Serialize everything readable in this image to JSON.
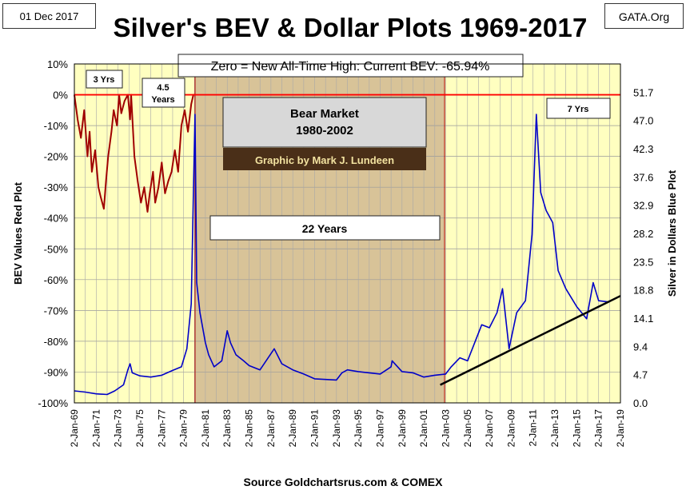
{
  "header": {
    "date": "01 Dec 2017",
    "title": "Silver's BEV & Dollar Plots 1969-2017",
    "brand": "GATA.Org"
  },
  "colors": {
    "plot_bg": "#ffffc0",
    "bear_shade": "#d8c398",
    "bev_line": "#a00000",
    "price_line": "#0000c8",
    "zero_line": "#ff0000",
    "trend_line": "#000000"
  },
  "chart_data": {
    "type": "line",
    "title": "Silver's BEV & Dollar Plots 1969-2017",
    "xlabel": "Source Goldchartsrus.com & COMEX",
    "ylabel_left": "BEV Values   Red Plot",
    "ylabel_right": "Silver in Dollars   Blue Plot",
    "xlim": [
      1969,
      2019
    ],
    "ylim_left": [
      -100,
      10
    ],
    "ylim_right": [
      0,
      56.4
    ],
    "x_ticks": [
      "2-Jan-69",
      "2-Jan-71",
      "2-Jan-73",
      "2-Jan-75",
      "2-Jan-77",
      "2-Jan-79",
      "2-Jan-81",
      "2-Jan-83",
      "2-Jan-85",
      "2-Jan-87",
      "2-Jan-89",
      "2-Jan-91",
      "2-Jan-93",
      "2-Jan-95",
      "2-Jan-97",
      "2-Jan-99",
      "2-Jan-01",
      "2-Jan-03",
      "2-Jan-05",
      "2-Jan-07",
      "2-Jan-09",
      "2-Jan-11",
      "2-Jan-13",
      "2-Jan-15",
      "2-Jan-17",
      "2-Jan-19"
    ],
    "y_ticks_left": [
      "10%",
      "0%",
      "-10%",
      "-20%",
      "-30%",
      "-40%",
      "-50%",
      "-60%",
      "-70%",
      "-80%",
      "-90%",
      "-100%"
    ],
    "y_ticks_right": [
      "51.7",
      "47.0",
      "42.3",
      "37.6",
      "32.9",
      "28.2",
      "23.5",
      "18.8",
      "14.1",
      "9.4",
      "4.7",
      "0.0"
    ],
    "grid": true,
    "series": [
      {
        "name": "BEV Values (Red Plot)",
        "x": [
          1969.0,
          1969.3,
          1969.6,
          1969.9,
          1970.2,
          1970.4,
          1970.6,
          1970.9,
          1971.2,
          1971.4,
          1971.7,
          1971.9,
          1972.1,
          1972.4,
          1972.6,
          1972.9,
          1973.1,
          1973.3,
          1973.6,
          1973.9,
          1974.1,
          1974.2,
          1974.5,
          1974.8,
          1975.1,
          1975.4,
          1975.7,
          1975.9,
          1976.2,
          1976.4,
          1976.7,
          1977.0,
          1977.3,
          1977.6,
          1977.9,
          1978.2,
          1978.5,
          1978.8,
          1979.1,
          1979.4,
          1979.7,
          1979.9,
          1980.05
        ],
        "y": [
          0,
          -8,
          -14,
          -5,
          -20,
          -12,
          -25,
          -18,
          -30,
          -33,
          -37,
          -28,
          -20,
          -12,
          -5,
          -10,
          0,
          -6,
          -2,
          0,
          -8,
          0,
          -20,
          -28,
          -35,
          -30,
          -38,
          -32,
          -25,
          -35,
          -30,
          -22,
          -32,
          -28,
          -25,
          -18,
          -25,
          -10,
          -5,
          -12,
          -3,
          0,
          0
        ]
      },
      {
        "name": "Silver in Dollars (Blue Plot)",
        "x": [
          1969.0,
          1970.0,
          1971.0,
          1972.0,
          1972.7,
          1973.5,
          1973.9,
          1974.1,
          1974.3,
          1975.0,
          1976.0,
          1977.0,
          1978.0,
          1978.8,
          1979.3,
          1979.7,
          1979.9,
          1980.05,
          1980.2,
          1980.5,
          1981.0,
          1981.3,
          1981.8,
          1982.5,
          1983.0,
          1983.3,
          1983.8,
          1984.5,
          1985.0,
          1986.0,
          1987.3,
          1988.0,
          1989.0,
          1990.0,
          1991.0,
          1992.0,
          1993.0,
          1993.5,
          1994.0,
          1995.0,
          1996.0,
          1997.0,
          1998.0,
          1998.1,
          1999.0,
          2000.0,
          2001.0,
          2002.0,
          2003.0,
          2003.5,
          2004.3,
          2005.0,
          2006.3,
          2007.0,
          2007.7,
          2008.2,
          2008.8,
          2009.5,
          2010.3,
          2010.9,
          2011.3,
          2011.7,
          2012.2,
          2012.8,
          2013.3,
          2014.0,
          2015.0,
          2015.9,
          2016.5,
          2017.0,
          2017.9
        ],
        "y": [
          2.0,
          1.8,
          1.5,
          1.4,
          2.0,
          3.0,
          5.5,
          6.5,
          5.0,
          4.5,
          4.3,
          4.6,
          5.4,
          6.0,
          9.0,
          16.5,
          35.0,
          48.0,
          20.0,
          15.0,
          10.0,
          8.0,
          6.0,
          7.0,
          12.0,
          10.0,
          8.0,
          7.0,
          6.2,
          5.5,
          9.0,
          6.5,
          5.5,
          4.8,
          4.0,
          3.9,
          3.8,
          5.0,
          5.5,
          5.2,
          5.0,
          4.8,
          6.0,
          7.0,
          5.2,
          5.0,
          4.3,
          4.6,
          4.8,
          6.0,
          7.5,
          7.0,
          13.0,
          12.5,
          15.0,
          19.0,
          9.0,
          15.0,
          17.0,
          28.0,
          48.0,
          35.0,
          32.0,
          30.0,
          22.0,
          19.0,
          16.0,
          14.0,
          20.0,
          17.0,
          16.8
        ]
      }
    ],
    "annotations": {
      "top_banner": "Zero = New All-Time High: Current BEV: -65.94%",
      "yrs_3": "3 Yrs",
      "yrs_45_line1": "4.5",
      "yrs_45_line2": "Years",
      "yrs_7": "7 Yrs",
      "bear_line1": "Bear Market",
      "bear_line2": "1980-2002",
      "credit": "Graphic by Mark J. Lundeen",
      "years_22": "22 Years"
    }
  }
}
